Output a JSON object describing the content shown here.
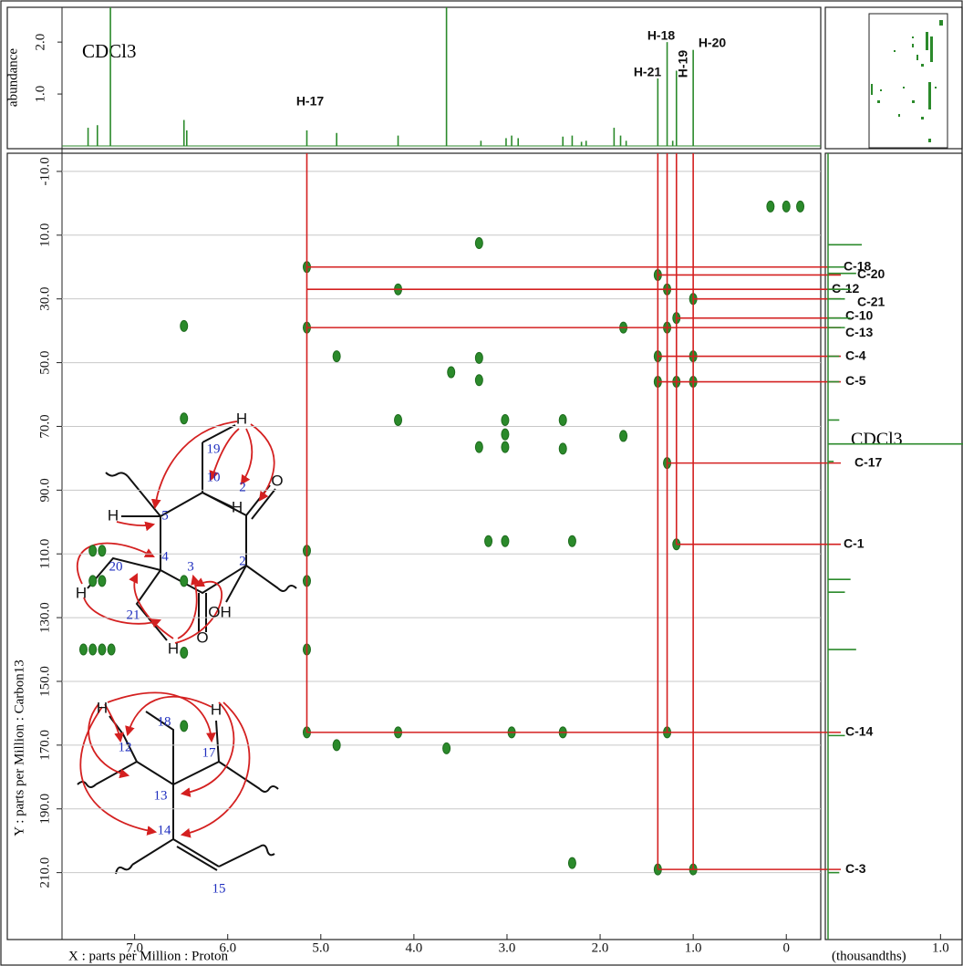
{
  "chart_data": [
    {
      "type": "stem",
      "ylabel": "abundance",
      "note": "CDCl3",
      "color": "#2b8a2b",
      "x": [
        7.5,
        7.4,
        7.26,
        6.47,
        6.44,
        5.15,
        4.83,
        4.17,
        3.65,
        3.28,
        3.01,
        2.95,
        2.88,
        2.4,
        2.3,
        2.2,
        2.15,
        1.85,
        1.78,
        1.72,
        1.38,
        1.28,
        1.22,
        1.18,
        1.0
      ],
      "values": [
        0.35,
        0.4,
        3,
        0.5,
        0.3,
        0.3,
        0.25,
        0.2,
        3,
        0.1,
        0.15,
        0.2,
        0.15,
        0.18,
        0.2,
        0.08,
        0.1,
        0.35,
        0.2,
        0.1,
        1.3,
        2.0,
        0.1,
        1.45,
        1.85
      ],
      "xlim": [
        7.78,
        -0.37
      ],
      "ylim": [
        0,
        2.67
      ],
      "yticks": [
        {
          "value": 1,
          "label": "1.0"
        },
        {
          "value": 2,
          "label": "2.0"
        }
      ]
    },
    {
      "type": "scatter",
      "xlabel": "X : parts per Million : Proton",
      "ylabel": "Y : parts per Million : Carbon13",
      "color": "#2b8a2b",
      "line_color": "#d42020",
      "grid": true,
      "x": [
        0.0,
        0.17,
        -0.15,
        3.3,
        5.15,
        1.38,
        4.17,
        1.28,
        1.0,
        6.47,
        5.15,
        1.75,
        1.28,
        1.18,
        4.83,
        3.3,
        3.6,
        3.3,
        1.38,
        1.0,
        1.38,
        1.18,
        1.0,
        6.47,
        4.17,
        3.02,
        2.4,
        3.02,
        1.75,
        3.3,
        3.02,
        2.4,
        1.28,
        3.2,
        3.02,
        2.3,
        1.18,
        5.15,
        7.45,
        7.35,
        7.45,
        7.35,
        6.47,
        5.15,
        7.55,
        7.45,
        7.35,
        7.25,
        6.47,
        5.15,
        6.47,
        5.15,
        4.17,
        4.83,
        3.65,
        2.95,
        2.4,
        1.28,
        2.3,
        1.38,
        1.0
      ],
      "values": [
        1,
        1,
        1,
        12.5,
        20,
        22.5,
        27,
        27,
        30,
        38.5,
        39,
        39,
        39,
        36,
        48,
        48.5,
        53,
        55.5,
        48,
        48,
        56,
        56,
        56,
        67.5,
        68,
        68,
        68,
        72.5,
        73,
        76.5,
        76.5,
        77,
        81.5,
        106,
        106,
        106,
        107,
        109,
        109,
        109,
        118.5,
        118.5,
        118.5,
        118.5,
        140,
        140,
        140,
        140,
        141,
        140,
        164,
        166,
        166,
        170,
        171,
        166,
        166,
        166,
        207,
        209,
        209
      ],
      "xlim": [
        7.78,
        -0.37
      ],
      "ylim": [
        -15.7,
        231
      ],
      "xticks": [
        {
          "value": 7,
          "label": "7.0"
        },
        {
          "value": 6,
          "label": "6.0"
        },
        {
          "value": 5,
          "label": "5.0"
        },
        {
          "value": 4,
          "label": "4.0"
        },
        {
          "value": 3,
          "label": "3.0"
        },
        {
          "value": 2,
          "label": "2.0"
        },
        {
          "value": 1,
          "label": "1.0"
        },
        0
      ],
      "yticks": [
        {
          "value": -10,
          "label": "-10.0"
        },
        {
          "value": 10,
          "label": "10.0"
        },
        {
          "value": 30,
          "label": "30.0"
        },
        {
          "value": 50,
          "label": "50.0"
        },
        {
          "value": 70,
          "label": "70.0"
        },
        {
          "value": 90,
          "label": "90.0"
        },
        {
          "value": 110,
          "label": "110.0"
        },
        {
          "value": 130,
          "label": "130.0"
        },
        {
          "value": 150,
          "label": "150.0"
        },
        {
          "value": 170,
          "label": "170.0"
        },
        {
          "value": 190,
          "label": "190.0"
        },
        {
          "value": 210,
          "label": "210.0"
        }
      ],
      "proton_lines": [
        {
          "label": "H-17",
          "x": 5.15,
          "y_end": 166
        },
        {
          "label": "H-21",
          "x": 1.38,
          "y_end": 209
        },
        {
          "label": "H-18",
          "x": 1.28,
          "y_end": 166
        },
        {
          "label": "H-19",
          "x": 1.18,
          "y_end": 107
        },
        {
          "label": "H-20",
          "x": 1.0,
          "y_end": 209
        }
      ],
      "carbon_lines": [
        {
          "label": "C-18",
          "y": 20,
          "x_start": 5.15
        },
        {
          "label": "C-20",
          "y": 22.5,
          "x_start": 1.38
        },
        {
          "label": "C-12",
          "y": 27,
          "x_start": 5.15
        },
        {
          "label": "C-21",
          "y": 30,
          "x_start": 1.0
        },
        {
          "label": "C-10",
          "y": 36,
          "x_start": 1.18
        },
        {
          "label": "C-13",
          "y": 39,
          "x_start": 5.15
        },
        {
          "label": "C-4",
          "y": 48,
          "x_start": 1.38
        },
        {
          "label": "C-5",
          "y": 56,
          "x_start": 1.38
        },
        {
          "label": "C-17",
          "y": 81.5,
          "x_start": 1.28
        },
        {
          "label": "C-1",
          "y": 107,
          "x_start": 1.18
        },
        {
          "label": "C-14",
          "y": 166,
          "x_start": 5.15
        },
        {
          "label": "C-3",
          "y": 209,
          "x_start": 1.38
        }
      ]
    },
    {
      "type": "projection",
      "xlabel": "(thousandths)",
      "note": "CDCl3",
      "color": "#2b8a2b",
      "y": [
        13,
        20,
        22,
        27,
        30,
        36,
        39,
        48,
        56,
        68,
        75.5,
        81,
        118,
        122,
        140,
        167,
        210
      ],
      "values": [
        0.3,
        0.15,
        0.25,
        0.2,
        0.15,
        0.2,
        0.15,
        0.1,
        0.1,
        0.1,
        1.4,
        0.05,
        0.2,
        0.15,
        0.25,
        0.15,
        0.1
      ],
      "xlim": [
        0,
        1.2
      ],
      "xticks": [
        {
          "value": 1,
          "label": "1.0"
        }
      ]
    }
  ],
  "structure": {
    "labels": [
      "H",
      "19",
      "10",
      "2",
      "O",
      "H",
      "5",
      "H",
      "4",
      "3",
      "2",
      "20",
      "H",
      "21",
      "OH",
      "O",
      "H",
      "H",
      "18",
      "H",
      "12",
      "17",
      "13",
      "14",
      "15"
    ]
  }
}
